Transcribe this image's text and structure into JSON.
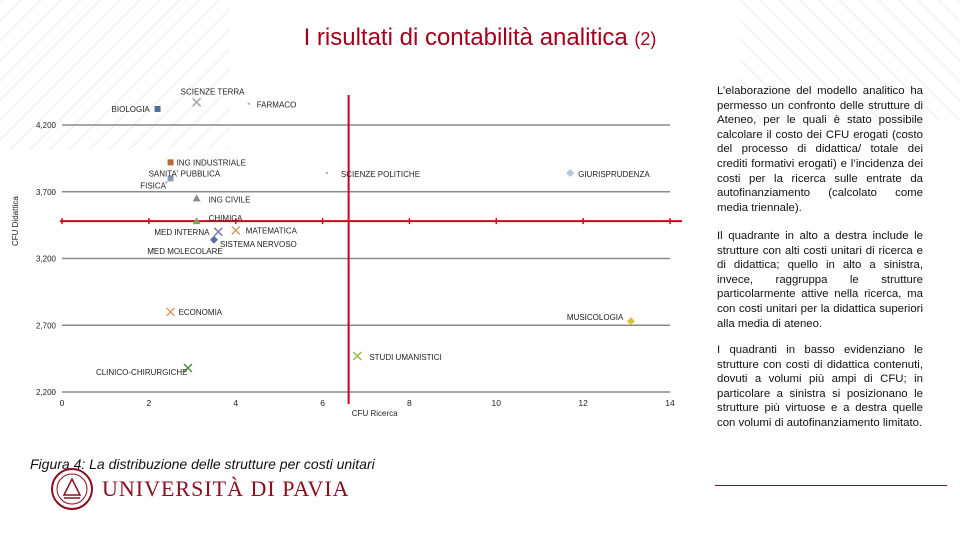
{
  "slide": {
    "title": "I risultati di contabilità analitica",
    "title_number": "(2)",
    "caption": "Figura 4: La distribuzione delle strutture per costi unitari",
    "university": "UNIVERSITÀ DI PAVIA",
    "text_blocks": [
      "L’elaborazione del modello analitico ha permesso un confronto delle strutture di Ateneo, per le quali è stato possibile calcolare il costo dei CFU erogati (costo del processo di didattica/ totale dei crediti formativi erogati) e l’incidenza dei costi per la ricerca sulle entrate da autofinanziamento (calcolato come media triennale).",
      "Il quadrante in alto a destra include le strutture con alti costi unitari di ricerca e di didattica; quello in alto a sinistra, invece, raggruppa le strutture particolarmente attive nella ricerca, ma con costi unitari per la didattica superiori alla media di ateneo.",
      "I quadranti in basso evidenziano le strutture con costi di didattica contenuti, dovuti a volumi più ampi di CFU; in particolare a sinistra si posizionano le strutture più virtuose e a destra quelle con volumi di autofinanziamento limitato."
    ]
  },
  "colors": {
    "title": "#a3001b",
    "axis": "#8a8a8a",
    "mean_line": "#d0001a"
  },
  "chart_data": {
    "type": "scatter",
    "xlabel": "CFU Ricerca",
    "ylabel": "CFU Didattica",
    "xlim": [
      0,
      14
    ],
    "ylim": [
      2200,
      4500
    ],
    "xticks": [
      0,
      2,
      4,
      6,
      8,
      10,
      12,
      14
    ],
    "yticks": [
      2200,
      2700,
      3200,
      3700,
      4200
    ],
    "xtick_labels": [
      "0",
      "2",
      "4",
      "6",
      "8",
      "10",
      "12",
      "14"
    ],
    "ytick_labels": [
      "2,200",
      "2,700",
      "3,200",
      "3,700",
      "4,200"
    ],
    "mean_x": 6.6,
    "mean_y": 3480,
    "grid": "horizontal",
    "points": [
      {
        "label": "SCIENZE TERRA",
        "x": 3.1,
        "y": 4370,
        "marker": "x",
        "color": "#a9a9a9"
      },
      {
        "label": "FARMACO",
        "x": 4.3,
        "y": 4360,
        "marker": "dot",
        "color": "#b0b0b0"
      },
      {
        "label": "BIOLOGIA",
        "x": 2.2,
        "y": 4320,
        "marker": "square",
        "color": "#4f6f9f"
      },
      {
        "label": "ING INDUSTRIALE",
        "x": 2.5,
        "y": 3920,
        "marker": "square",
        "color": "#b86a3c"
      },
      {
        "label": "SANITA' PUBBLICA",
        "x": 2.5,
        "y": 3800,
        "marker": "square",
        "color": "#8a9bb0"
      },
      {
        "label": "FISICA",
        "x": 2.4,
        "y": 3770,
        "marker": "dot",
        "color": "#b0b0b0"
      },
      {
        "label": "SCIENZE POLITICHE",
        "x": 6.1,
        "y": 3840,
        "marker": "dot",
        "color": "#b0b0b0"
      },
      {
        "label": "GIURISPRUDENZA",
        "x": 11.7,
        "y": 3840,
        "marker": "diamond",
        "color": "#b7c4d9"
      },
      {
        "label": "ING CIVILE",
        "x": 3.1,
        "y": 3650,
        "marker": "triangle",
        "color": "#8c8c8c"
      },
      {
        "label": "CHIMICA",
        "x": 3.1,
        "y": 3480,
        "marker": "triangle",
        "color": "#8a9a5b"
      },
      {
        "label": "MED INTERNA",
        "x": 3.6,
        "y": 3400,
        "marker": "x",
        "color": "#7f7fb0"
      },
      {
        "label": "MATEMATICA",
        "x": 4.0,
        "y": 3410,
        "marker": "x",
        "color": "#d4a06a"
      },
      {
        "label": "SISTEMA NERVOSO",
        "x": 3.5,
        "y": 3340,
        "marker": "diamond",
        "color": "#5a6fa0"
      },
      {
        "label": "MED MOLECOLARE",
        "x": 2.1,
        "y": 3270,
        "marker": "dot",
        "color": "#b0b0b0"
      },
      {
        "label": "ECONOMIA",
        "x": 2.5,
        "y": 2800,
        "marker": "x",
        "color": "#d4a06a"
      },
      {
        "label": "MUSICOLOGIA",
        "x": 13.1,
        "y": 2730,
        "marker": "diamond",
        "color": "#d8c040"
      },
      {
        "label": "STUDI UMANISTICI",
        "x": 6.8,
        "y": 2470,
        "marker": "x",
        "color": "#9bbb59"
      },
      {
        "label": "CLINICO-CHIRURGICHE",
        "x": 2.9,
        "y": 2380,
        "marker": "x",
        "color": "#4f8f3f"
      }
    ]
  }
}
